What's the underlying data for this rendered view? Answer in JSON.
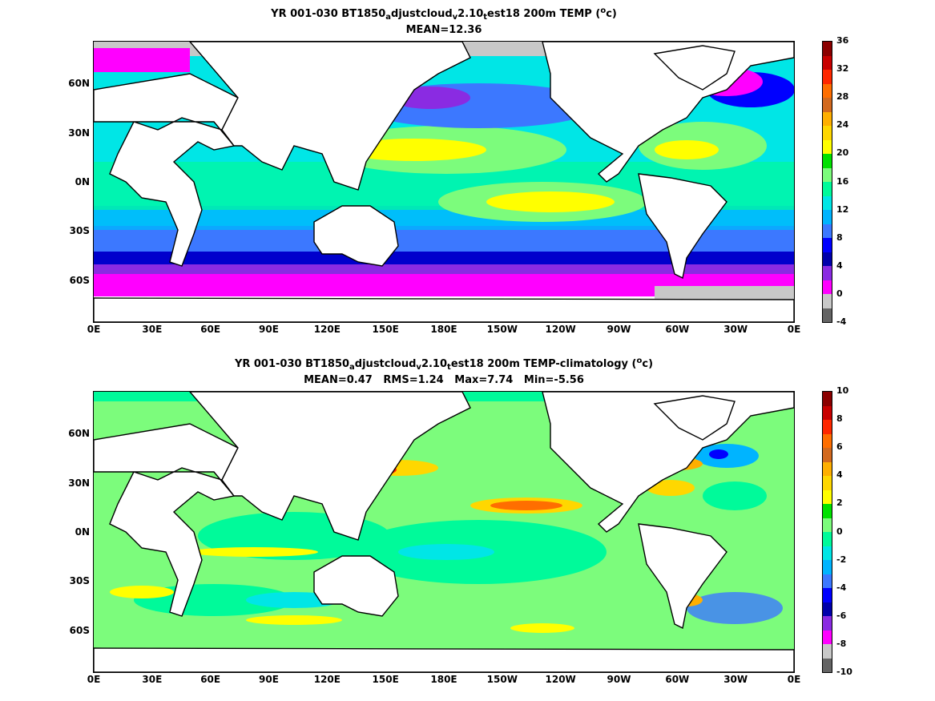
{
  "panels": [
    {
      "title_pre": "YR 001-030 BT1850",
      "title_s1": "a",
      "title_mid1": "djustcloud",
      "title_s2": "v",
      "title_mid2": "2.10",
      "title_s3": "t",
      "title_mid3": "est18 200m TEMP (",
      "title_sup": "o",
      "title_post": "c)",
      "stats": "MEAN=12.36",
      "colorbar_labels": [
        "36",
        "32",
        "28",
        "24",
        "20",
        "16",
        "12",
        "8",
        "4",
        "0",
        "-4"
      ],
      "colorbar_colors": [
        "#8b0000",
        "#c80000",
        "#ff2800",
        "#ff6e00",
        "#d2691e",
        "#ffaf00",
        "#ffd700",
        "#ffff00",
        "#00e100",
        "#7cfc7c",
        "#00fa9a",
        "#00e6e6",
        "#00b4ff",
        "#3c78ff",
        "#0000ff",
        "#0000aa",
        "#8a2be2",
        "#ff00ff",
        "#c8c8c8",
        "#646464"
      ]
    },
    {
      "title_pre": "YR 001-030 BT1850",
      "title_s1": "a",
      "title_mid1": "djustcloud",
      "title_s2": "v",
      "title_mid2": "2.10",
      "title_s3": "t",
      "title_mid3": "est18 200m TEMP-climatology (",
      "title_sup": "o",
      "title_post": "c)",
      "stats": "MEAN=0.47   RMS=1.24   Max=7.74   Min=-5.56",
      "colorbar_labels": [
        "10",
        "8",
        "6",
        "4",
        "2",
        "0",
        "-2",
        "-4",
        "-6",
        "-8",
        "-10"
      ],
      "colorbar_colors": [
        "#8b0000",
        "#c80000",
        "#ff2800",
        "#ff6e00",
        "#d2691e",
        "#ffaf00",
        "#ffd700",
        "#ffff00",
        "#00e100",
        "#7cfc7c",
        "#00fa9a",
        "#00e6e6",
        "#00b4ff",
        "#3c78ff",
        "#0000ff",
        "#0000aa",
        "#8a2be2",
        "#ff00ff",
        "#c8c8c8",
        "#646464"
      ]
    }
  ],
  "axes": {
    "xticks": [
      "0E",
      "30E",
      "60E",
      "90E",
      "120E",
      "150E",
      "180E",
      "150W",
      "120W",
      "90W",
      "60W",
      "30W",
      "0E"
    ],
    "yticks": [
      "60N",
      "30N",
      "0N",
      "30S",
      "60S"
    ]
  }
}
